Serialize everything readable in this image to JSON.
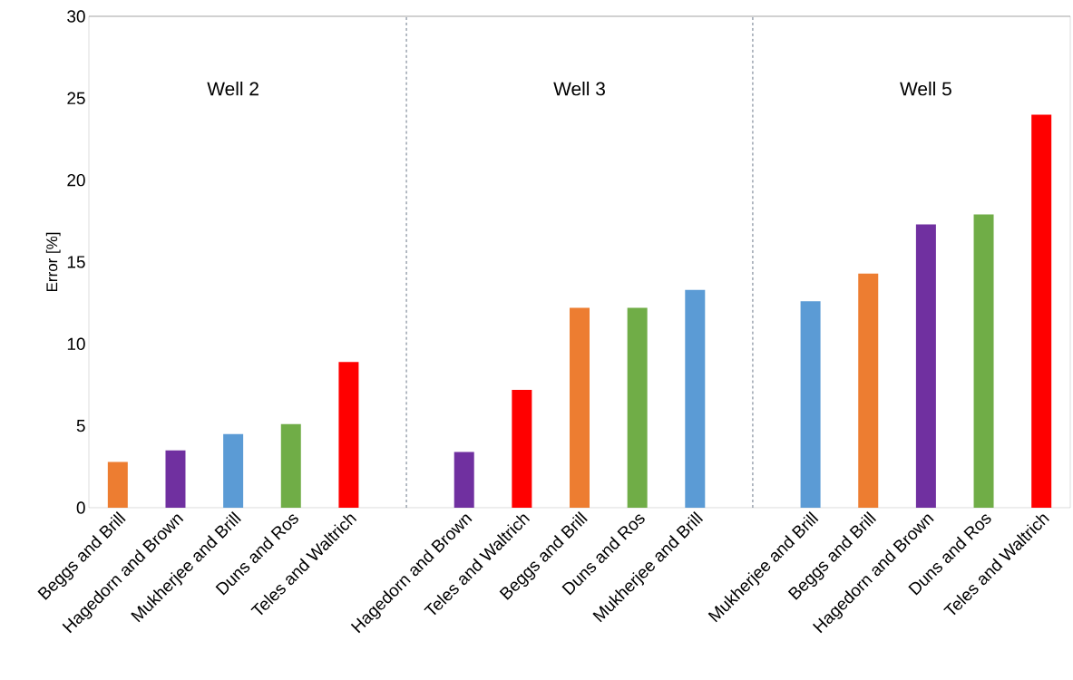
{
  "chart_data": {
    "type": "bar",
    "ylabel": "Error [%]",
    "categories": [
      "Beggs and Brill",
      "Hagedorn and Brown",
      "Mukherjee and Brill",
      "Duns and Ros",
      "Teles and Waltrich",
      null,
      "Hagedorn and Brown",
      "Teles and Waltrich",
      "Beggs and Brill",
      "Duns and Ros",
      "Mukherjee and Brill",
      null,
      "Mukherjee and Brill",
      "Beggs and Brill",
      "Hagedorn and Brown",
      "Duns and Ros",
      "Teles and Waltrich"
    ],
    "values": [
      2.8,
      3.5,
      4.5,
      5.1,
      8.9,
      null,
      3.4,
      7.2,
      12.2,
      12.2,
      13.3,
      null,
      12.6,
      14.3,
      17.3,
      17.9,
      24.0
    ],
    "colors": [
      "#ed7d31",
      "#7030a0",
      "#5b9bd5",
      "#70ad47",
      "#ff0000",
      null,
      "#7030a0",
      "#ff0000",
      "#ed7d31",
      "#70ad47",
      "#5b9bd5",
      null,
      "#5b9bd5",
      "#ed7d31",
      "#7030a0",
      "#70ad47",
      "#ff0000"
    ],
    "ylim": [
      0,
      30
    ],
    "yticks": [
      0,
      5,
      10,
      15,
      20,
      25,
      30
    ],
    "annotations": [
      "Well 2",
      "Well 3",
      "Well 5"
    ]
  }
}
